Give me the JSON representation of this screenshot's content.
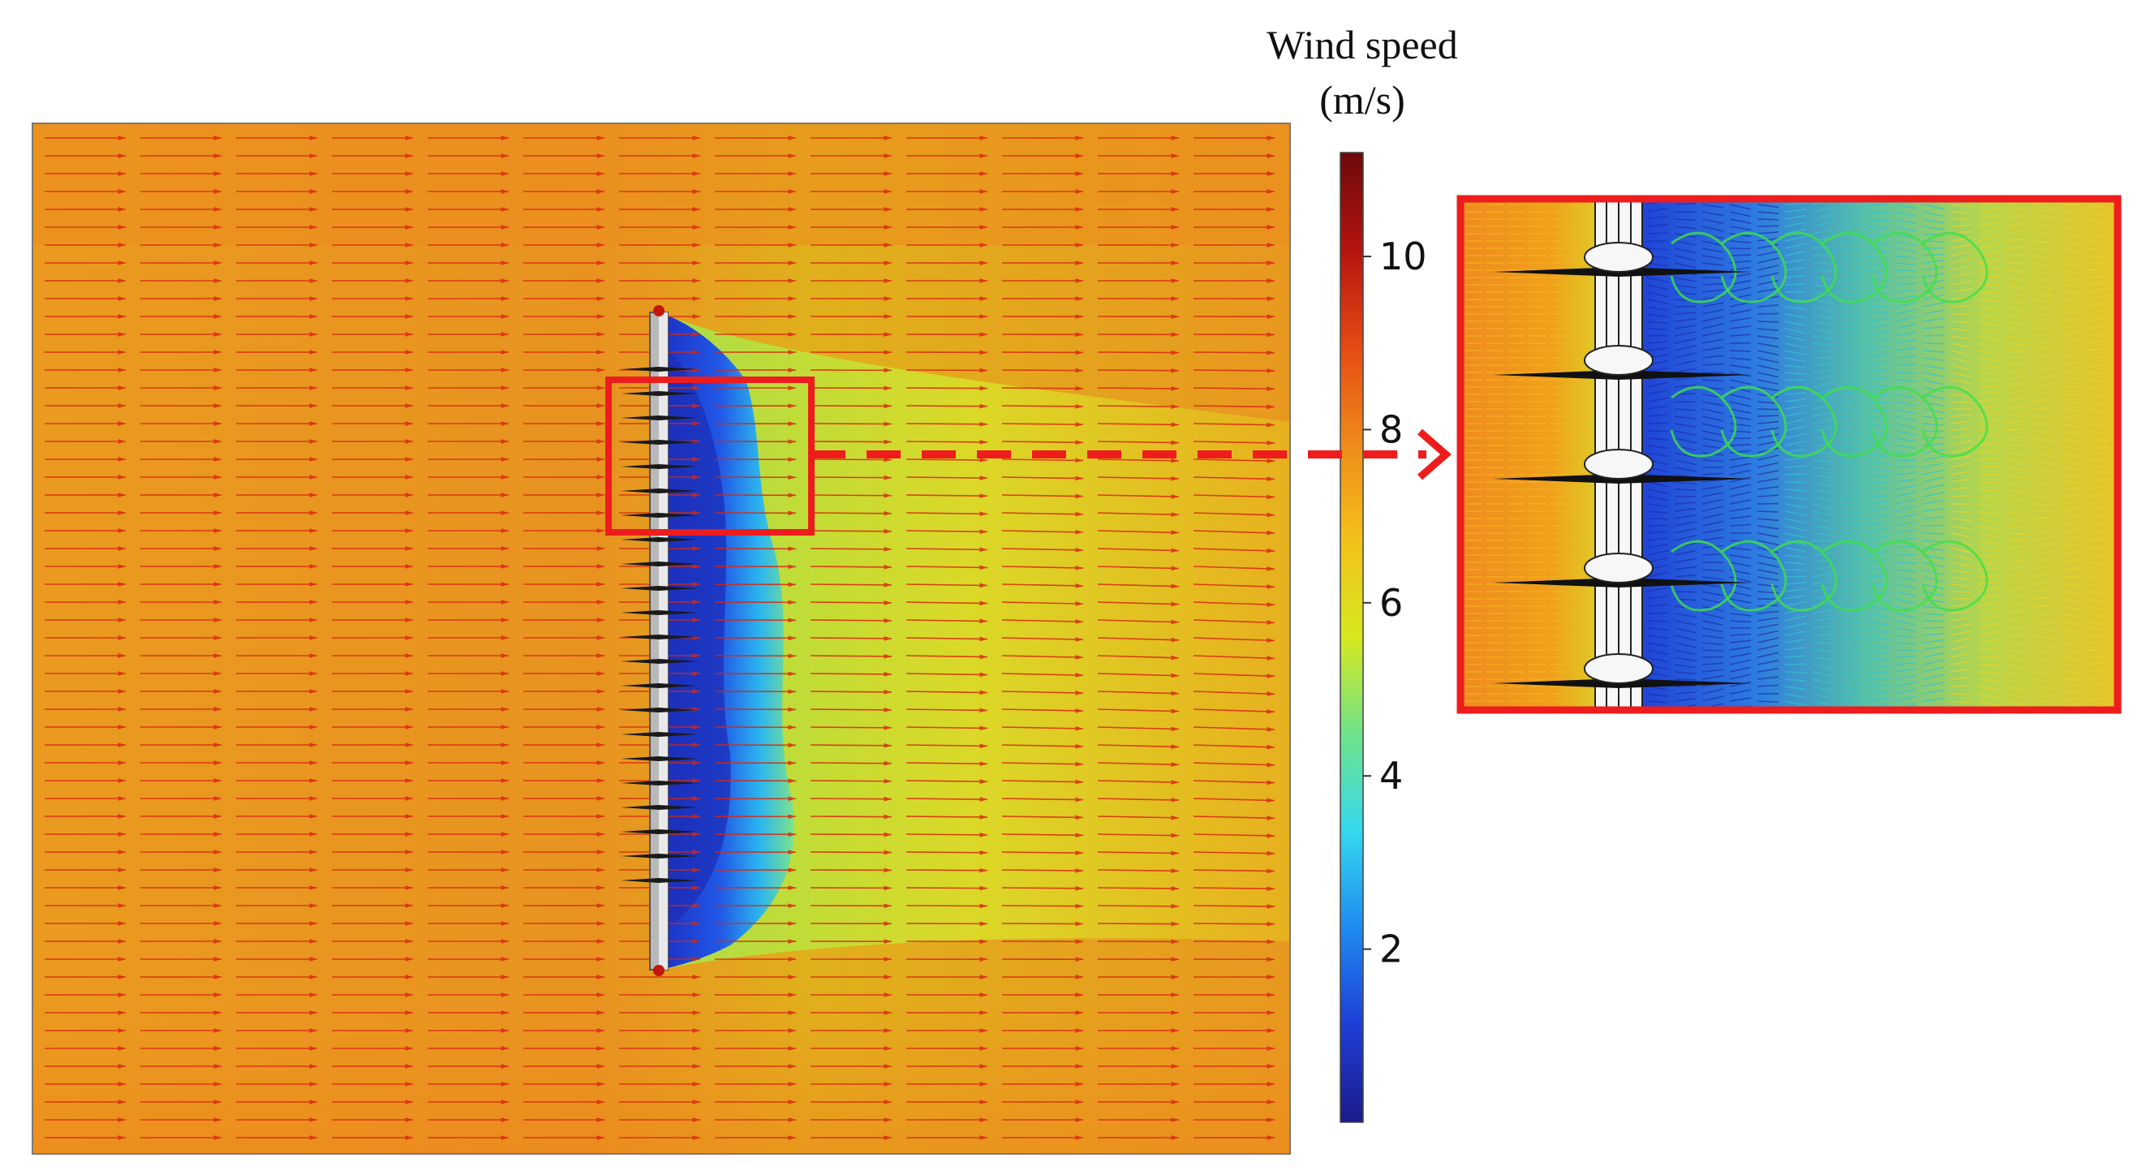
{
  "colorbar": {
    "title_line1": "Wind speed",
    "title_line2": "(m/s)",
    "min": 0,
    "max": 11.2,
    "ticks": [
      {
        "value": 2,
        "label": "2"
      },
      {
        "value": 4,
        "label": "4"
      },
      {
        "value": 6,
        "label": "6"
      },
      {
        "value": 8,
        "label": "8"
      },
      {
        "value": 10,
        "label": "10"
      }
    ],
    "colormap": [
      "#1c1a8a",
      "#1e3ed6",
      "#1f8af0",
      "#35d8ee",
      "#6fe38a",
      "#d6e81f",
      "#f3c21a",
      "#ef8a1a",
      "#e54a14",
      "#b3130f",
      "#6d0a0a"
    ]
  },
  "colors": {
    "ambient_flow": "#e8901e",
    "wake_core": "#1d3fd8",
    "arrow": "#d8280f",
    "highlight_box": "#ee1c1c"
  }
}
